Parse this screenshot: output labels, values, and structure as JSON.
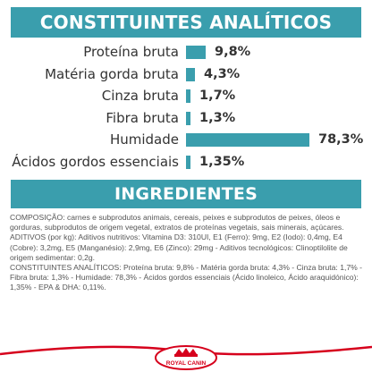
{
  "header1": "CONSTITUINTES ANALÍTICOS",
  "header2": "INGREDIENTES",
  "constituents": [
    {
      "label": "Proteína bruta",
      "value": "9,8%",
      "percent": 9.8
    },
    {
      "label": "Matéria gorda bruta",
      "value": "4,3%",
      "percent": 4.3
    },
    {
      "label": "Cinza bruta",
      "value": "1,7%",
      "percent": 1.7
    },
    {
      "label": "Fibra bruta",
      "value": "1,3%",
      "percent": 1.3
    },
    {
      "label": "Humidade",
      "value": "78,3%",
      "percent": 78.3
    },
    {
      "label": "Ácidos gordos essenciais",
      "value": "1,35%",
      "percent": 1.35
    }
  ],
  "ingredients": {
    "composition": "COMPOSIÇÃO: carnes e subprodutos animais, cereais, peixes e subprodutos de peixes, óleos e gorduras, subprodutos de origem vegetal, extratos de proteínas vegetais, sais minerais, açúcares.",
    "additives": "ADITIVOS (por kg): Aditivos nutritivos: Vitamina D3: 310UI, E1 (Ferro): 9mg, E2 (Iodo): 0,4mg, E4 (Cobre): 3,2mg, E5 (Manganésio): 2,9mg, E6 (Zinco): 29mg - Aditivos tecnológicos: Clinoptilolite de origem sedimentar: 0,2g.",
    "analytical": "CONSTITUINTES ANALÍTICOS: Proteína bruta: 9,8% - Matéria gorda bruta: 4,3% - Cinza bruta: 1,7% - Fibra bruta: 1,3% - Humidade: 78,3% - Ácidos gordos essenciais (Ácido linoleico, Ácido araquidónico): 1,35% - EPA & DHA: 0,11%."
  },
  "colors": {
    "accent": "#3a9ead",
    "brand_red": "#d6001c"
  },
  "logo": {
    "text": "ROYAL CANIN"
  }
}
